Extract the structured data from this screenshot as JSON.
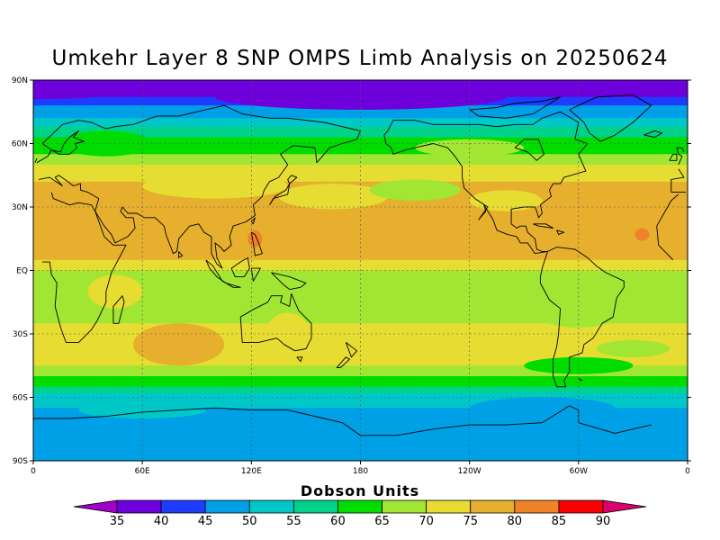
{
  "title": "Umkehr Layer 8 SNP OMPS Limb Analysis on 20250624",
  "lat_ticks": [
    "90N",
    "60N",
    "30N",
    "EQ",
    "30S",
    "60S",
    "90S"
  ],
  "lon_ticks": [
    "0",
    "60E",
    "120E",
    "180",
    "120W",
    "60W",
    "0"
  ],
  "colorbar": {
    "title": "Dobson Units",
    "labels": [
      "35",
      "40",
      "45",
      "50",
      "55",
      "60",
      "65",
      "70",
      "75",
      "80",
      "85",
      "90"
    ],
    "colors": [
      "#a000c8",
      "#6e00dc",
      "#1e3cff",
      "#00a0e6",
      "#00c8c8",
      "#00d28c",
      "#00dc00",
      "#a0e632",
      "#e6dc32",
      "#e6af2d",
      "#f08228",
      "#fa0000",
      "#dc006e"
    ]
  },
  "bands": [
    {
      "lat": 90,
      "color": "#6e00dc"
    },
    {
      "lat": 82,
      "color": "#1e3cff"
    },
    {
      "lat": 78,
      "color": "#00a0e6"
    },
    {
      "lat": 72,
      "color": "#00c8c8"
    },
    {
      "lat": 68,
      "color": "#00d28c"
    },
    {
      "lat": 63,
      "color": "#00dc00"
    },
    {
      "lat": 55,
      "color": "#a0e632"
    },
    {
      "lat": 50,
      "color": "#e6dc32"
    },
    {
      "lat": 42,
      "color": "#e6af2d"
    },
    {
      "lat": 5,
      "color": "#e6dc32"
    },
    {
      "lat": 0,
      "color": "#a0e632"
    },
    {
      "lat": -25,
      "color": "#e6dc32"
    },
    {
      "lat": -45,
      "color": "#a0e632"
    },
    {
      "lat": -50,
      "color": "#00dc00"
    },
    {
      "lat": -55,
      "color": "#00d28c"
    },
    {
      "lat": -58,
      "color": "#00c8c8"
    },
    {
      "lat": -65,
      "color": "#00a0e6"
    }
  ]
}
